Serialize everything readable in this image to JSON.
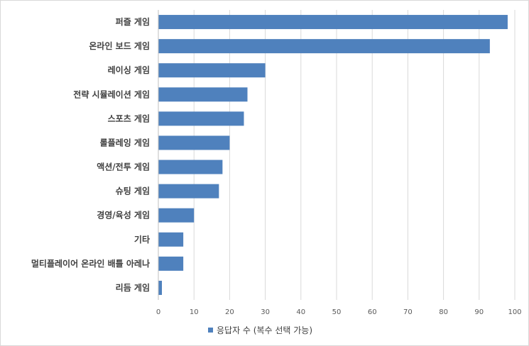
{
  "chart_data": {
    "type": "bar",
    "orientation": "horizontal",
    "categories": [
      "퍼즐 게임",
      "온라인 보드 게임",
      "레이싱 게임",
      "전략 시뮬레이션 게임",
      "스포츠 게임",
      "롤플레잉 게임",
      "액션/전투 게임",
      "슈팅 게임",
      "경영/육성 게임",
      "기타",
      "멀티플레이어 온라인 배틀 아레나",
      "리듬 게임"
    ],
    "series": [
      {
        "name": "응답자 수 (복수 선택 가능)",
        "values": [
          98,
          93,
          30,
          25,
          24,
          20,
          18,
          17,
          10,
          7,
          7,
          1
        ],
        "color": "#4f81bd"
      }
    ],
    "xlim": [
      0,
      100
    ],
    "xticks": [
      "0",
      "10",
      "20",
      "30",
      "40",
      "50",
      "60",
      "70",
      "80",
      "90",
      "100"
    ],
    "grid": "vertical",
    "legend_position": "bottom"
  }
}
